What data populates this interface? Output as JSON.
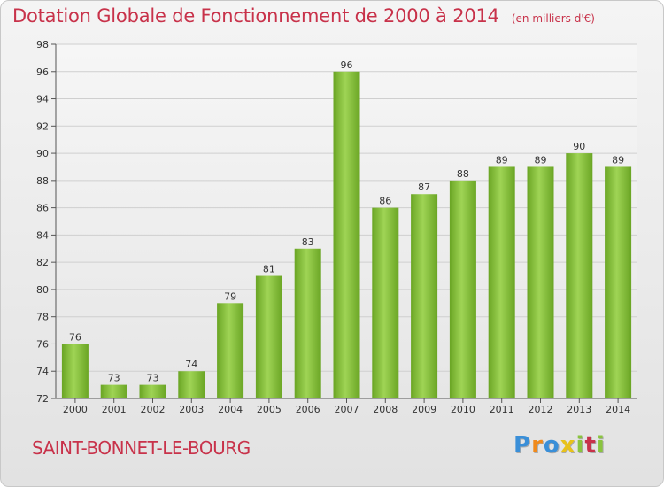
{
  "chart_data": {
    "type": "bar",
    "title": "Dotation Globale de Fonctionnement de 2000 à 2014",
    "subtitle": "(en milliers d'€)",
    "categories": [
      "2000",
      "2001",
      "2002",
      "2003",
      "2004",
      "2005",
      "2006",
      "2007",
      "2008",
      "2009",
      "2010",
      "2011",
      "2012",
      "2013",
      "2014"
    ],
    "values": [
      76,
      73,
      73,
      74,
      79,
      81,
      83,
      96,
      86,
      87,
      88,
      89,
      89,
      90,
      89
    ],
    "ylim": [
      72,
      98
    ],
    "yticks": [
      72,
      74,
      76,
      78,
      80,
      82,
      84,
      86,
      88,
      90,
      92,
      94,
      96,
      98
    ],
    "grid": true,
    "xlabel": "",
    "ylabel": "",
    "bar_color": "#7cb82f",
    "bar_color_light": "#a4d95a"
  },
  "commune": "SAINT-BONNET-LE-BOURG",
  "logo": {
    "letters": [
      "P",
      "r",
      "o",
      "x",
      "i",
      "t",
      "i"
    ],
    "colors": [
      "#3a8fd8",
      "#f08a1c",
      "#3a8fd8",
      "#e8c21a",
      "#8ac43f",
      "#c8324a",
      "#8ac43f"
    ]
  },
  "colors": {
    "title": "#c8324a",
    "grid": "#cfcfcf",
    "axis": "#555555"
  }
}
